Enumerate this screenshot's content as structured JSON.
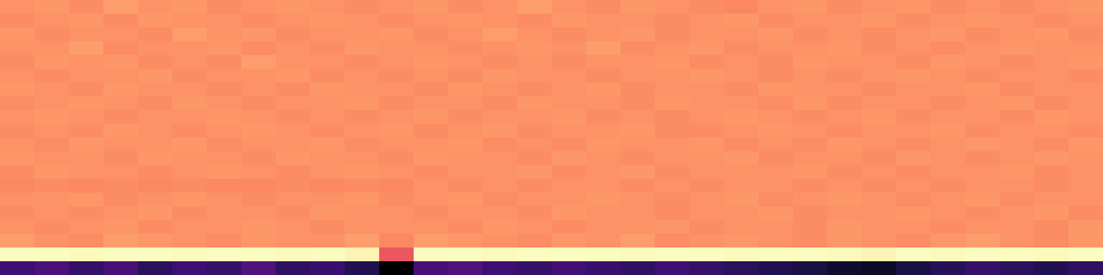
{
  "chart_data": {
    "type": "heatmap",
    "color": "magma",
    "tick_labels": false,
    "cells": [
      [
        0.74,
        0.75,
        0.73,
        0.76,
        0.74,
        0.75,
        0.73,
        0.74,
        0.75,
        0.74,
        0.73,
        0.74,
        0.75,
        0.73,
        0.74,
        0.76,
        0.74,
        0.73,
        0.75,
        0.74,
        0.73,
        0.72,
        0.74,
        0.75,
        0.73,
        0.74,
        0.75,
        0.73,
        0.74,
        0.73,
        0.74,
        0.75
      ],
      [
        0.73,
        0.74,
        0.75,
        0.73,
        0.75,
        0.74,
        0.74,
        0.73,
        0.74,
        0.75,
        0.74,
        0.73,
        0.74,
        0.75,
        0.74,
        0.73,
        0.75,
        0.74,
        0.74,
        0.73,
        0.74,
        0.75,
        0.73,
        0.74,
        0.74,
        0.75,
        0.73,
        0.74,
        0.75,
        0.74,
        0.73,
        0.74
      ],
      [
        0.75,
        0.73,
        0.74,
        0.74,
        0.73,
        0.76,
        0.74,
        0.75,
        0.73,
        0.74,
        0.74,
        0.75,
        0.73,
        0.74,
        0.76,
        0.74,
        0.73,
        0.74,
        0.75,
        0.73,
        0.74,
        0.74,
        0.75,
        0.73,
        0.74,
        0.73,
        0.74,
        0.75,
        0.73,
        0.74,
        0.75,
        0.73
      ],
      [
        0.74,
        0.74,
        0.76,
        0.73,
        0.74,
        0.74,
        0.75,
        0.73,
        0.74,
        0.73,
        0.75,
        0.74,
        0.74,
        0.73,
        0.74,
        0.75,
        0.74,
        0.76,
        0.73,
        0.74,
        0.75,
        0.73,
        0.74,
        0.74,
        0.75,
        0.73,
        0.74,
        0.73,
        0.74,
        0.75,
        0.74,
        0.74
      ],
      [
        0.73,
        0.75,
        0.74,
        0.75,
        0.73,
        0.74,
        0.73,
        0.76,
        0.74,
        0.74,
        0.73,
        0.74,
        0.75,
        0.74,
        0.73,
        0.74,
        0.73,
        0.74,
        0.74,
        0.75,
        0.73,
        0.74,
        0.73,
        0.75,
        0.74,
        0.74,
        0.73,
        0.75,
        0.74,
        0.73,
        0.74,
        0.75
      ],
      [
        0.74,
        0.73,
        0.74,
        0.74,
        0.75,
        0.73,
        0.74,
        0.74,
        0.75,
        0.73,
        0.74,
        0.73,
        0.74,
        0.73,
        0.75,
        0.74,
        0.74,
        0.73,
        0.74,
        0.74,
        0.75,
        0.74,
        0.73,
        0.74,
        0.73,
        0.74,
        0.75,
        0.74,
        0.73,
        0.74,
        0.74,
        0.73
      ],
      [
        0.75,
        0.74,
        0.73,
        0.75,
        0.74,
        0.74,
        0.73,
        0.74,
        0.73,
        0.75,
        0.74,
        0.74,
        0.73,
        0.75,
        0.74,
        0.73,
        0.74,
        0.75,
        0.73,
        0.74,
        0.74,
        0.73,
        0.75,
        0.74,
        0.74,
        0.73,
        0.74,
        0.74,
        0.75,
        0.73,
        0.74,
        0.74
      ],
      [
        0.73,
        0.74,
        0.75,
        0.74,
        0.73,
        0.75,
        0.74,
        0.73,
        0.74,
        0.74,
        0.75,
        0.73,
        0.74,
        0.74,
        0.73,
        0.75,
        0.74,
        0.74,
        0.73,
        0.75,
        0.74,
        0.74,
        0.73,
        0.75,
        0.73,
        0.74,
        0.74,
        0.73,
        0.74,
        0.75,
        0.73,
        0.74
      ],
      [
        0.74,
        0.75,
        0.74,
        0.73,
        0.74,
        0.74,
        0.75,
        0.74,
        0.73,
        0.74,
        0.73,
        0.74,
        0.75,
        0.73,
        0.74,
        0.74,
        0.75,
        0.73,
        0.74,
        0.73,
        0.74,
        0.75,
        0.74,
        0.73,
        0.74,
        0.75,
        0.73,
        0.74,
        0.74,
        0.73,
        0.75,
        0.74
      ],
      [
        0.73,
        0.74,
        0.73,
        0.75,
        0.74,
        0.73,
        0.74,
        0.75,
        0.74,
        0.73,
        0.74,
        0.75,
        0.73,
        0.74,
        0.75,
        0.73,
        0.74,
        0.74,
        0.75,
        0.73,
        0.73,
        0.74,
        0.75,
        0.74,
        0.73,
        0.74,
        0.74,
        0.75,
        0.73,
        0.74,
        0.74,
        0.73
      ],
      [
        0.74,
        0.73,
        0.75,
        0.74,
        0.74,
        0.75,
        0.73,
        0.74,
        0.74,
        0.75,
        0.73,
        0.74,
        0.74,
        0.75,
        0.73,
        0.74,
        0.73,
        0.75,
        0.74,
        0.74,
        0.75,
        0.73,
        0.74,
        0.73,
        0.75,
        0.74,
        0.73,
        0.74,
        0.75,
        0.74,
        0.73,
        0.75
      ],
      [
        0.75,
        0.74,
        0.74,
        0.73,
        0.75,
        0.74,
        0.74,
        0.73,
        0.75,
        0.74,
        0.74,
        0.73,
        0.75,
        0.74,
        0.74,
        0.73,
        0.75,
        0.74,
        0.73,
        0.74,
        0.74,
        0.75,
        0.73,
        0.74,
        0.74,
        0.73,
        0.75,
        0.74,
        0.73,
        0.74,
        0.75,
        0.74
      ],
      [
        0.73,
        0.75,
        0.74,
        0.74,
        0.73,
        0.74,
        0.75,
        0.74,
        0.73,
        0.74,
        0.75,
        0.74,
        0.73,
        0.74,
        0.74,
        0.75,
        0.73,
        0.74,
        0.75,
        0.73,
        0.74,
        0.74,
        0.74,
        0.75,
        0.73,
        0.74,
        0.73,
        0.74,
        0.74,
        0.75,
        0.73,
        0.74
      ],
      [
        0.72,
        0.73,
        0.72,
        0.73,
        0.72,
        0.73,
        0.72,
        0.72,
        0.73,
        0.72,
        0.73,
        0.72,
        0.74,
        0.73,
        0.74,
        0.73,
        0.74,
        0.74,
        0.73,
        0.74,
        0.73,
        0.74,
        0.74,
        0.73,
        0.74,
        0.73,
        0.74,
        0.73,
        0.74,
        0.74,
        0.73,
        0.74
      ],
      [
        0.74,
        0.74,
        0.75,
        0.73,
        0.74,
        0.75,
        0.74,
        0.73,
        0.74,
        0.74,
        0.75,
        0.73,
        0.74,
        0.75,
        0.73,
        0.74,
        0.74,
        0.75,
        0.74,
        0.73,
        0.74,
        0.75,
        0.73,
        0.74,
        0.75,
        0.74,
        0.73,
        0.74,
        0.75,
        0.73,
        0.74,
        0.74
      ],
      [
        0.73,
        0.74,
        0.73,
        0.74,
        0.75,
        0.73,
        0.74,
        0.74,
        0.73,
        0.75,
        0.74,
        0.74,
        0.73,
        0.74,
        0.74,
        0.73,
        0.75,
        0.74,
        0.74,
        0.73,
        0.74,
        0.74,
        0.75,
        0.73,
        0.74,
        0.74,
        0.75,
        0.74,
        0.73,
        0.74,
        0.75,
        0.73
      ],
      [
        0.74,
        0.73,
        0.74,
        0.75,
        0.73,
        0.74,
        0.74,
        0.75,
        0.74,
        0.73,
        0.74,
        0.74,
        0.74,
        0.73,
        0.75,
        0.74,
        0.73,
        0.74,
        0.74,
        0.75,
        0.73,
        0.74,
        0.74,
        0.73,
        0.75,
        0.74,
        0.74,
        0.73,
        0.74,
        0.74,
        0.73,
        0.75
      ],
      [
        0.76,
        0.74,
        0.73,
        0.76,
        0.75,
        0.74,
        0.73,
        0.75,
        0.74,
        0.74,
        0.76,
        0.72,
        0.76,
        0.75,
        0.74,
        0.73,
        0.75,
        0.74,
        0.76,
        0.73,
        0.74,
        0.75,
        0.74,
        0.73,
        0.75,
        0.74,
        0.73,
        0.75,
        0.76,
        0.74,
        0.73,
        0.75
      ],
      [
        0.95,
        0.95,
        0.94,
        0.95,
        0.95,
        0.94,
        0.95,
        0.95,
        0.94,
        0.95,
        0.93,
        0.62,
        0.95,
        0.95,
        0.94,
        0.95,
        0.95,
        0.95,
        0.94,
        0.95,
        0.95,
        0.94,
        0.95,
        0.95,
        0.94,
        0.93,
        0.95,
        0.94,
        0.95,
        0.95,
        0.94,
        0.95
      ],
      [
        0.22,
        0.25,
        0.2,
        0.24,
        0.18,
        0.22,
        0.2,
        0.26,
        0.19,
        0.21,
        0.16,
        0.03,
        0.24,
        0.26,
        0.22,
        0.2,
        0.23,
        0.21,
        0.19,
        0.22,
        0.2,
        0.18,
        0.16,
        0.14,
        0.11,
        0.1,
        0.14,
        0.17,
        0.2,
        0.18,
        0.16,
        0.19
      ]
    ]
  }
}
